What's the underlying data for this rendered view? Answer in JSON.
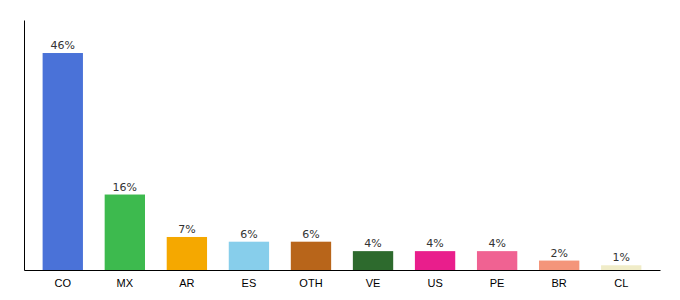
{
  "chart_data": {
    "type": "bar",
    "categories": [
      "CO",
      "MX",
      "AR",
      "ES",
      "OTH",
      "VE",
      "US",
      "PE",
      "BR",
      "CL"
    ],
    "values": [
      46,
      16,
      7,
      6,
      6,
      4,
      4,
      4,
      2,
      1
    ],
    "value_labels": [
      "46%",
      "16%",
      "7%",
      "6%",
      "6%",
      "4%",
      "4%",
      "4%",
      "2%",
      "1%"
    ],
    "colors": [
      "#4a72d8",
      "#3dba4e",
      "#f5a800",
      "#87ceeb",
      "#b8651a",
      "#2d6a2d",
      "#e91e8c",
      "#f06292",
      "#f4957a",
      "#f0ecc8"
    ],
    "ylim": [
      0,
      53
    ],
    "data_labels": true,
    "tick_labels": "x"
  }
}
